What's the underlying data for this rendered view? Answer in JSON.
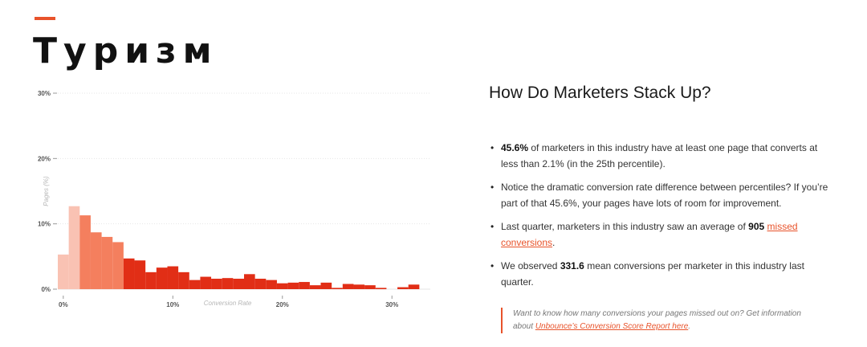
{
  "page": {
    "title": "Туризм"
  },
  "chart_data": {
    "type": "bar",
    "title": "",
    "xlabel": "Conversion Rate",
    "ylabel": "Pages (%)",
    "ylim": [
      0,
      30
    ],
    "xlim": [
      -0.5,
      33.5
    ],
    "y_ticks": [
      0,
      10,
      20,
      30
    ],
    "y_tick_labels": [
      "0%",
      "10%",
      "20%",
      "30%"
    ],
    "x_ticks": [
      0,
      10,
      20,
      30
    ],
    "x_tick_labels": [
      "0%",
      "10%",
      "20%",
      "30%"
    ],
    "grid": true,
    "bin_width": 1,
    "x": [
      0,
      1,
      2,
      3,
      4,
      5,
      6,
      7,
      8,
      9,
      10,
      11,
      12,
      13,
      14,
      15,
      16,
      17,
      18,
      19,
      20,
      21,
      22,
      23,
      24,
      25,
      26,
      27,
      28,
      29,
      30,
      31,
      32
    ],
    "values": [
      5.3,
      12.7,
      11.3,
      8.7,
      8.0,
      7.2,
      4.7,
      4.4,
      2.6,
      3.3,
      3.5,
      2.6,
      1.4,
      1.9,
      1.6,
      1.7,
      1.6,
      2.3,
      1.6,
      1.4,
      0.9,
      1.0,
      1.1,
      0.6,
      1.0,
      0.2,
      0.8,
      0.7,
      0.6,
      0.2,
      0.0,
      0.3,
      0.7
    ],
    "colors": [
      "#f9c2b3",
      "#f9c2b3",
      "#f47f5e",
      "#f47f5e",
      "#f47f5e",
      "#f47f5e",
      "#e12e16",
      "#e12e16",
      "#e12e16",
      "#e12e16",
      "#e12e16",
      "#e12e16",
      "#e12e16",
      "#e12e16",
      "#e12e16",
      "#e12e16",
      "#e12e16",
      "#e12e16",
      "#e12e16",
      "#e12e16",
      "#e12e16",
      "#e12e16",
      "#e12e16",
      "#e12e16",
      "#e12e16",
      "#e12e16",
      "#e12e16",
      "#e12e16",
      "#e12e16",
      "#e12e16",
      "#e12e16",
      "#e12e16",
      "#e12e16"
    ],
    "grid_color": "#e6e6e6"
  },
  "panel": {
    "heading": "How Do Marketers Stack Up?",
    "b1_strong": "45.6%",
    "b1_text": " of marketers in this industry have at least one page that converts at less than 2.1% (in the 25th percentile).",
    "b2_text": "Notice the dramatic conversion rate difference between percentiles? If you’re part of that 45.6%, your pages have lots of room for improvement.",
    "b3_pre": "Last quarter, marketers in this industry saw an average of ",
    "b3_strong": "905",
    "b3_link": "missed conversions",
    "b3_post": ".",
    "b4_pre": "We observed ",
    "b4_strong": "331.6",
    "b4_post": " mean conversions per marketer in this industry last quarter.",
    "note_pre": "Want to know how many conversions your pages missed out on? Get information about ",
    "note_link": "Unbounce’s Conversion Score Report here",
    "note_post": "."
  },
  "colors": {
    "accent": "#e8532b"
  }
}
